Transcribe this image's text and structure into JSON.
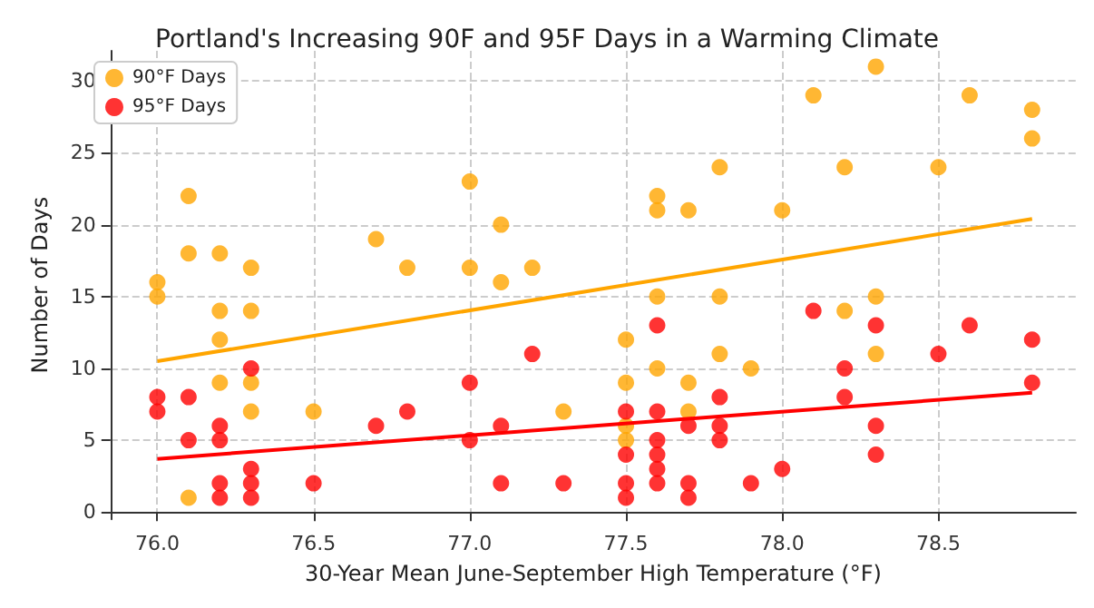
{
  "chart_data": {
    "type": "scatter",
    "title": "Portland's Increasing 90F and 95F Days in a Warming Climate",
    "xlabel": "30-Year Mean June-September High Temperature (°F)",
    "ylabel": "Number of Days",
    "series": [
      {
        "name": "90°F Days",
        "color": "#ffa500",
        "x": [
          76.0,
          76.0,
          76.1,
          76.1,
          76.1,
          76.2,
          76.2,
          76.2,
          76.2,
          76.3,
          76.3,
          76.3,
          76.3,
          76.5,
          76.7,
          76.8,
          77.0,
          77.0,
          77.1,
          77.1,
          77.2,
          77.3,
          77.5,
          77.5,
          77.5,
          77.5,
          77.6,
          77.6,
          77.6,
          77.6,
          77.7,
          77.7,
          77.7,
          77.8,
          77.8,
          77.8,
          77.9,
          78.0,
          78.1,
          78.2,
          78.2,
          78.3,
          78.3,
          78.3,
          78.5,
          78.6,
          78.8,
          78.8
        ],
        "values": [
          16,
          15,
          22,
          18,
          1,
          18,
          14,
          12,
          9,
          17,
          14,
          9,
          7,
          7,
          19,
          17,
          23,
          17,
          20,
          16,
          17,
          7,
          12,
          9,
          6,
          5,
          22,
          21,
          15,
          10,
          21,
          9,
          7,
          24,
          15,
          11,
          10,
          21,
          29,
          24,
          14,
          31,
          15,
          11,
          24,
          29,
          28,
          26
        ]
      },
      {
        "name": "95°F Days",
        "color": "#ff0000",
        "x": [
          76.0,
          76.0,
          76.1,
          76.1,
          76.2,
          76.2,
          76.2,
          76.2,
          76.3,
          76.3,
          76.3,
          76.3,
          76.5,
          76.7,
          76.8,
          77.0,
          77.0,
          77.1,
          77.1,
          77.2,
          77.3,
          77.5,
          77.5,
          77.5,
          77.5,
          77.6,
          77.6,
          77.6,
          77.6,
          77.6,
          77.6,
          77.7,
          77.7,
          77.7,
          77.8,
          77.8,
          77.8,
          77.9,
          78.0,
          78.1,
          78.2,
          78.2,
          78.3,
          78.3,
          78.3,
          78.5,
          78.6,
          78.8,
          78.8
        ],
        "values": [
          8,
          7,
          8,
          5,
          6,
          5,
          2,
          1,
          10,
          3,
          2,
          1,
          2,
          6,
          7,
          9,
          5,
          6,
          2,
          11,
          2,
          7,
          4,
          2,
          1,
          13,
          7,
          5,
          4,
          3,
          2,
          6,
          2,
          1,
          8,
          6,
          5,
          2,
          3,
          14,
          10,
          8,
          13,
          6,
          4,
          11,
          13,
          12,
          9
        ]
      },
      {
        "color": "#ffa500",
        "type": "line",
        "marker": "none",
        "x": [
          76.0,
          78.8
        ],
        "values": [
          10.5,
          20.4
        ]
      },
      {
        "color": "#ff0000",
        "type": "line",
        "marker": "none",
        "x": [
          76.0,
          78.8
        ],
        "values": [
          3.7,
          8.3
        ]
      }
    ],
    "xlim": [
      75.85,
      78.94
    ],
    "ylim": [
      -0.5,
      32.1
    ],
    "xticks": [
      {
        "value": 76.0,
        "label": "76.0"
      },
      {
        "value": 76.5,
        "label": "76.5"
      },
      {
        "value": 77.0,
        "label": "77.0"
      },
      {
        "value": 77.5,
        "label": "77.5"
      },
      {
        "value": 78.0,
        "label": "78.0"
      },
      {
        "value": 78.5,
        "label": "78.5"
      }
    ],
    "yticks": [
      0,
      5,
      10,
      15,
      20,
      25,
      30
    ],
    "grid": true,
    "legend": "top left",
    "marker": "circle"
  }
}
